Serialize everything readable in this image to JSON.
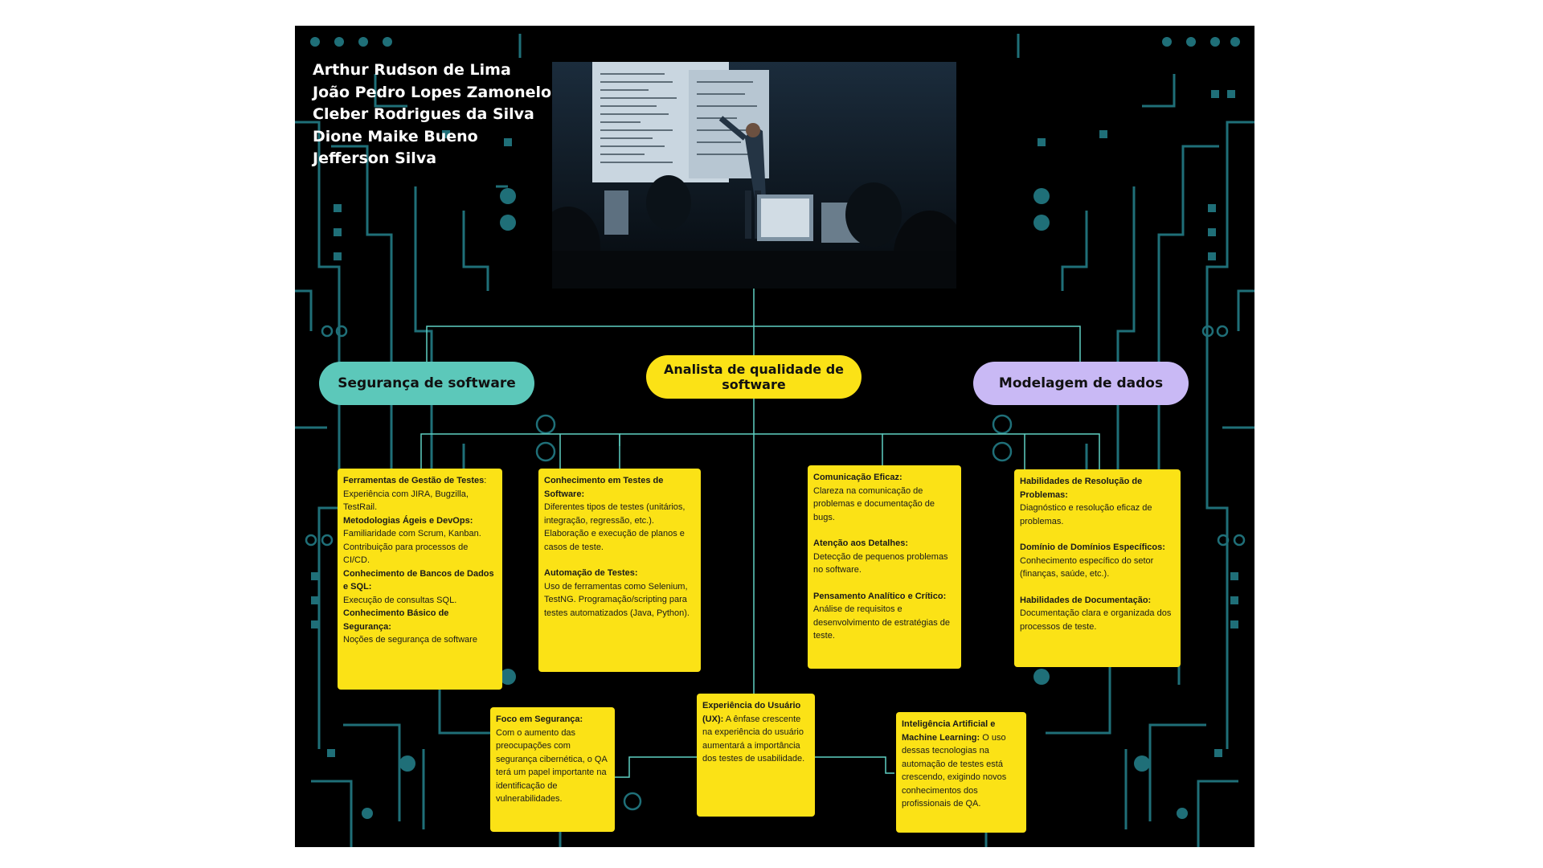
{
  "authors": [
    "Arthur Rudson de Lima",
    "João Pedro Lopes Zamonelo",
    "Cleber Rodrigues da Silva",
    "Dione Maike Bueno",
    "Jefferson Silva"
  ],
  "colors": {
    "background": "#000000",
    "circuit": "#1f6f78",
    "teal": "#5cc8ba",
    "yellow": "#fbe216",
    "lavender": "#c9b9f5",
    "connector": "#5fd0c2"
  },
  "photo": {
    "icon": "classroom-presentation-photo"
  },
  "central": {
    "label": "Analista de qualidade de software"
  },
  "left_branch": {
    "label": "Segurança de software"
  },
  "right_branch": {
    "label": "Modelagem de dados"
  },
  "cards": {
    "tools": {
      "h1": "Ferramentas de Gestão de Testes",
      "t1": "Experiência com JIRA, Bugzilla, TestRail.",
      "h2": "Metodologias Ágeis e DevOps:",
      "t2": "Familiaridade com Scrum, Kanban. Contribuição para processos de CI/CD.",
      "h3": "Conhecimento de Bancos de Dados e SQL:",
      "t3": "Execução de consultas SQL.",
      "h4": "Conhecimento Básico de Segurança:",
      "t4": "Noções de segurança de software"
    },
    "testing": {
      "h1": "Conhecimento em Testes de Software:",
      "t1": "Diferentes tipos de testes (unitários, integração, regressão, etc.). Elaboração e execução de planos e casos de teste.",
      "h2": "Automação de Testes:",
      "t2": "Uso de ferramentas como Selenium, TestNG. Programação/scripting para testes automatizados (Java, Python)."
    },
    "communication": {
      "h1": "Comunicação Eficaz:",
      "t1": "Clareza na comunicação de problemas e documentação de bugs.",
      "h2": "Atenção aos Detalhes:",
      "t2": "Detecção de pequenos problemas no software.",
      "h3": "Pensamento Analítico e Crítico:",
      "t3": "Análise de requisitos e desenvolvimento de estratégias de teste."
    },
    "problem": {
      "h1": "Habilidades de Resolução de Problemas:",
      "t1": "Diagnóstico e resolução eficaz de problemas.",
      "h2": "Domínio de Domínios Específicos:",
      "t2": "Conhecimento específico do setor (finanças, saúde, etc.).",
      "h3": "Habilidades de Documentação:",
      "t3": "Documentação clara e organizada dos processos de teste."
    },
    "security": {
      "h1": "Foco em Segurança:",
      "t1": "Com o aumento das preocupações com segurança cibernética, o QA terá um papel importante na identificação de vulnerabilidades."
    },
    "ux": {
      "h1": "Experiência do Usuário (UX):",
      "t1": "A ênfase crescente na experiência do usuário aumentará a importância dos testes de usabilidade."
    },
    "ai": {
      "h1": "Inteligência Artificial e Machine Learning:",
      "t1": "O uso dessas tecnologias na automação de testes está crescendo, exigindo novos conhecimentos dos profissionais de QA."
    }
  }
}
